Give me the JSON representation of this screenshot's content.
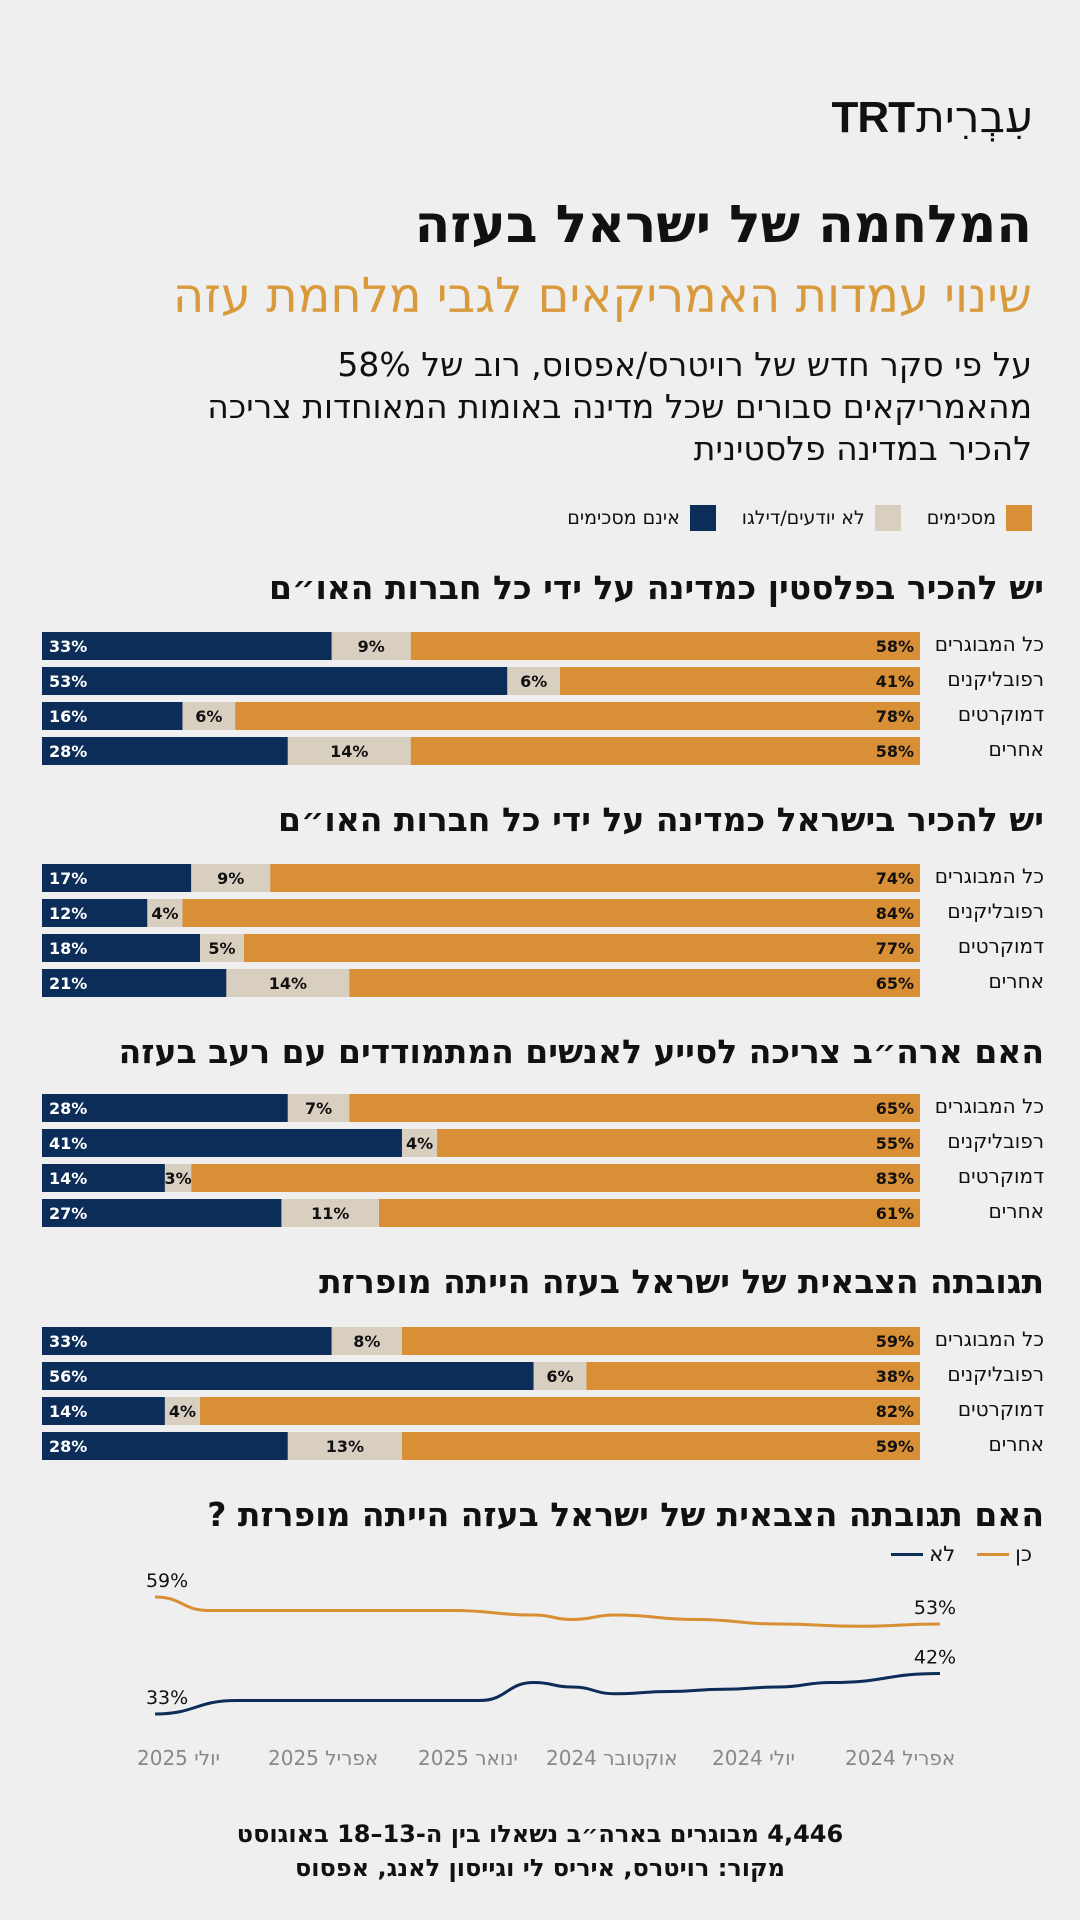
{
  "brand": {
    "latin": "TRT",
    "hebrew": "עִבְרִית"
  },
  "title": "המלחמה של ישראל בעזה",
  "subtitle": "שינוי עמדות האמריקאים לגבי מלחמת עזה",
  "intro": "על פי סקר חדש של רויטרס/אפסוס, רוב של 58% מהאמריקאים סבורים שכל מדינה באומות המאוחדות צריכה להכיר במדינה פלסטינית",
  "legend": {
    "agree": "מסכימים",
    "unknown": "לא יודעים/דילגו",
    "disagree": "אינם מסכימים"
  },
  "colors": {
    "agree": "#d98f35",
    "unknown": "#d8cfc1",
    "disagree": "#0d2d59",
    "background": "#efefef"
  },
  "chart_data": [
    {
      "type": "bar",
      "stacked": true,
      "orientation": "horizontal",
      "title": "יש להכיר בפלסטין כמדינה על ידי כל חברות האו״ם",
      "categories": [
        "כל המבוגרים",
        "רפובליקנים",
        "דמוקרטים",
        "אחרים"
      ],
      "series": [
        {
          "name": "אינם מסכימים",
          "values": [
            33,
            53,
            16,
            28
          ],
          "labels": [
            "33%",
            "53%",
            "16%",
            "28%"
          ]
        },
        {
          "name": "לא יודעים/דילגו",
          "values": [
            9,
            6,
            6,
            14
          ],
          "labels": [
            "9%",
            "6%",
            "6%",
            "14%"
          ]
        },
        {
          "name": "מסכימים",
          "values": [
            58,
            41,
            78,
            58
          ],
          "labels": [
            "58%",
            "41%",
            "78%",
            "58%"
          ]
        }
      ]
    },
    {
      "type": "bar",
      "stacked": true,
      "orientation": "horizontal",
      "title": "יש להכיר בישראל כמדינה על ידי כל חברות האו״ם",
      "categories": [
        "כל המבוגרים",
        "רפובליקנים",
        "דמוקרטים",
        "אחרים"
      ],
      "series": [
        {
          "name": "אינם מסכימים",
          "values": [
            17,
            12,
            18,
            21
          ],
          "labels": [
            "17%",
            "12%",
            "18%",
            "21%"
          ]
        },
        {
          "name": "לא יודעים/דילגו",
          "values": [
            9,
            4,
            5,
            14
          ],
          "labels": [
            "9%",
            "4%",
            "5%",
            "14%"
          ]
        },
        {
          "name": "מסכימים",
          "values": [
            74,
            84,
            77,
            65
          ],
          "labels": [
            "74%",
            "84%",
            "77%",
            "65%"
          ]
        }
      ]
    },
    {
      "type": "bar",
      "stacked": true,
      "orientation": "horizontal",
      "title": "האם ארה״ב צריכה לסייע לאנשים המתמודדים עם רעב בעזה",
      "categories": [
        "כל המבוגרים",
        "רפובליקנים",
        "דמוקרטים",
        "אחרים"
      ],
      "series": [
        {
          "name": "אינם מסכימים",
          "values": [
            28,
            41,
            14,
            27
          ],
          "labels": [
            "28%",
            "41%",
            "14%",
            "27%"
          ]
        },
        {
          "name": "לא יודעים/דילגו",
          "values": [
            7,
            4,
            3,
            11
          ],
          "labels": [
            "7%",
            "4%",
            "3%",
            "11%"
          ]
        },
        {
          "name": "מסכימים",
          "values": [
            65,
            55,
            83,
            61
          ],
          "labels": [
            "65%",
            "55%",
            "83%",
            "61%"
          ]
        }
      ]
    },
    {
      "type": "bar",
      "stacked": true,
      "orientation": "horizontal",
      "title": "תגובתה הצבאית של ישראל בעזה הייתה מופרזת",
      "categories": [
        "כל המבוגרים",
        "רפובליקנים",
        "דמוקרטים",
        "אחרים"
      ],
      "series": [
        {
          "name": "אינם מסכימים",
          "values": [
            33,
            56,
            14,
            28
          ],
          "labels": [
            "33%",
            "56%",
            "14%",
            "28%"
          ]
        },
        {
          "name": "לא יודעים/דילגו",
          "values": [
            8,
            6,
            4,
            13
          ],
          "labels": [
            "8%",
            "6%",
            "4%",
            "13%"
          ]
        },
        {
          "name": "מסכימים",
          "values": [
            59,
            38,
            82,
            59
          ],
          "labels": [
            "59%",
            "38%",
            "82%",
            "59%"
          ]
        }
      ]
    },
    {
      "type": "line",
      "title": "האם תגובתה הצבאית של ישראל בעזה הייתה מופרזת ?",
      "x_ticks": [
        "אפריל 2024",
        "יולי 2024",
        "אוקטובר 2024",
        "ינואר 2025",
        "אפריל 2025",
        "יולי 2025"
      ],
      "x_range": [
        0,
        15
      ],
      "ylim": [
        25,
        65
      ],
      "series": [
        {
          "name": "כן",
          "x": [
            0,
            1.5,
            3,
            4.5,
            6,
            6.8,
            7.5,
            9,
            10,
            11,
            12,
            13.5,
            14.5
          ],
          "values": [
            53,
            52.5,
            53,
            54,
            55,
            54,
            55,
            56,
            56,
            56,
            56,
            56,
            59
          ],
          "start_label": "53%",
          "end_label": "59%"
        },
        {
          "name": "לא",
          "x": [
            0,
            2,
            3,
            4,
            5,
            6,
            6.8,
            7.5,
            8.5,
            10,
            11,
            12,
            13,
            14.5
          ],
          "values": [
            42,
            40,
            39,
            38.5,
            38,
            37.5,
            39,
            40,
            36,
            36,
            36,
            36,
            36,
            33
          ],
          "start_label": "42%",
          "end_label": "33%"
        }
      ]
    }
  ],
  "footer": {
    "line1": "4,446 מבוגרים בארה״ב נשאלו בין ה-13–18 באוגוסט",
    "line2": "מקור: רויטרס, איריס לי וגייסון לאנג, אפסוס"
  }
}
